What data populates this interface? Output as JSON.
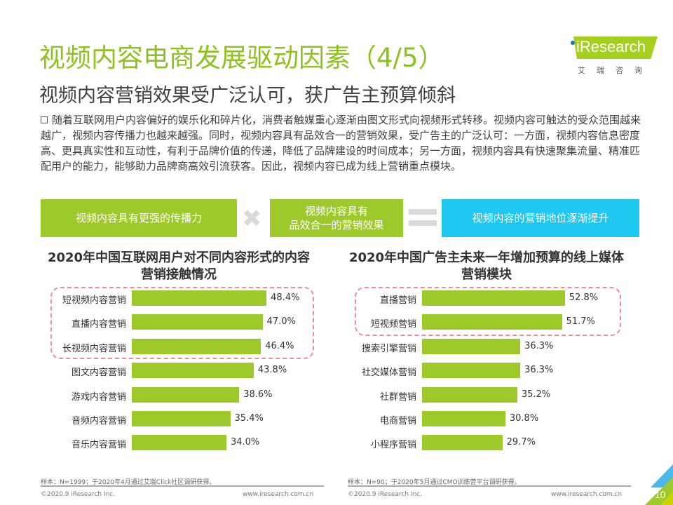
{
  "title": "视频内容电商发展驱动因素（4/5）",
  "subtitle": "视频内容营销效果受广泛认可，获广告主预算倾斜",
  "logo": {
    "brand": "iResearch",
    "cn": "艾瑞咨询"
  },
  "paragraph": "随着互联网用户内容偏好的娱乐化和碎片化，消费者触媒重心逐渐由图文形式向视频形式转移。视频内容可触达的受众范围越来越广，视频内容传播力也越来越强。同时，视频内容具有品效合一的营销效果，受广告主的广泛认可：一方面，视频内容信息密度高、更具真实性和互动性，有利于品牌价值的传递，降低了品牌建设的时间成本；另一方面，视频内容具有快速聚集流量、精准匹配用户的能力，能够助力品牌商高效引流获客。因此，视频内容已成为线上营销重点模块。",
  "flow": {
    "box1": "视频内容具有更强的传播力",
    "op1": "✖",
    "box2_line1": "视频内容具有",
    "box2_line2": "品效合一的营销效果",
    "box3": "视频内容的营销地位逐渐提升"
  },
  "colors": {
    "green": "#9dc92a",
    "title_green": "#8dc21f",
    "blue": "#1ec8f0",
    "dash": "#f08c96"
  },
  "chart_data": [
    {
      "type": "bar",
      "orientation": "horizontal",
      "title": "2020年中国互联网用户对不同内容形式的内容营销接触情况",
      "categories": [
        "短视频内容营销",
        "直播内容营销",
        "长视频内容营销",
        "图文内容营销",
        "游戏内容营销",
        "音频内容营销",
        "音乐内容营销"
      ],
      "values": [
        48.4,
        47.0,
        46.4,
        43.8,
        38.6,
        35.4,
        34.0
      ],
      "labels": [
        "48.4%",
        "47.0%",
        "46.4%",
        "43.8%",
        "38.6%",
        "35.4%",
        "34.0%"
      ],
      "highlighted": 3
    },
    {
      "type": "bar",
      "orientation": "horizontal",
      "title": "2020年中国广告主未来一年增加预算的线上媒体营销模块",
      "categories": [
        "直播营销",
        "短视频营销",
        "搜索引擎营销",
        "社交媒体营销",
        "社群营销",
        "电商营销",
        "小程序营销"
      ],
      "values": [
        52.8,
        51.7,
        36.3,
        36.3,
        35.2,
        30.8,
        29.7
      ],
      "labels": [
        "52.8%",
        "51.7%",
        "36.3%",
        "36.3%",
        "35.2%",
        "30.8%",
        "29.7%"
      ],
      "highlighted": 2
    }
  ],
  "footer": {
    "note1": "样本：N=1999；于2020年4月通过艾瑞Click社区调研获得。",
    "note2": "样本：N=90；于2020年5月通过CMO训练营平台调研获得。",
    "copyright": "©2020.9 iResearch Inc.",
    "url": "www.iresearch.com.cn",
    "page": "10"
  }
}
